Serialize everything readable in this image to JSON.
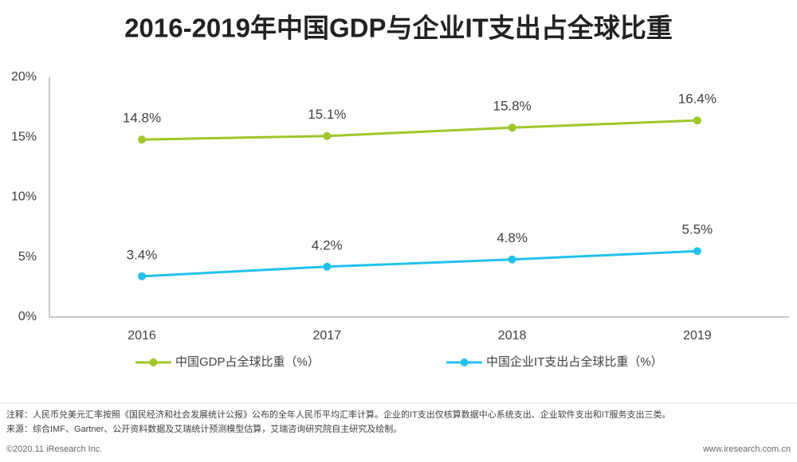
{
  "chart_data": {
    "type": "line",
    "title": "2016-2019年中国GDP与企业IT支出占全球比重",
    "categories": [
      "2016",
      "2017",
      "2018",
      "2019"
    ],
    "series": [
      {
        "name": "中国GDP占全球比重（%）",
        "color": "#9dc72a",
        "values": [
          14.8,
          15.1,
          15.8,
          16.4
        ],
        "value_labels": [
          "14.8%",
          "15.1%",
          "15.8%",
          "16.4%"
        ]
      },
      {
        "name": "中国企业IT支出占全球比重（%）",
        "color": "#22c1ee",
        "values": [
          3.4,
          4.2,
          4.8,
          5.5
        ],
        "value_labels": [
          "3.4%",
          "4.2%",
          "4.8%",
          "5.5%"
        ]
      }
    ],
    "ylim": [
      0,
      20
    ],
    "yticks": [
      {
        "value": 0,
        "label": "0%"
      },
      {
        "value": 5,
        "label": "5%"
      },
      {
        "value": 10,
        "label": "10%"
      },
      {
        "value": 15,
        "label": "15%"
      },
      {
        "value": 20,
        "label": "20%"
      }
    ],
    "grid": false,
    "legend": "bottom"
  },
  "footer": {
    "note": "注释：人民币兑美元汇率按照《国民经济和社会发展统计公报》公布的全年人民币平均汇率计算。企业的IT支出仅核算数据中心系统支出、企业软件支出和IT服务支出三类。",
    "source": "来源：综合IMF、Gartner、公开资料数据及艾瑞统计预测模型估算，艾瑞咨询研究院自主研究及绘制。",
    "copyright": "©2020.11 iResearch Inc.",
    "website": "www.iresearch.com.cn"
  }
}
